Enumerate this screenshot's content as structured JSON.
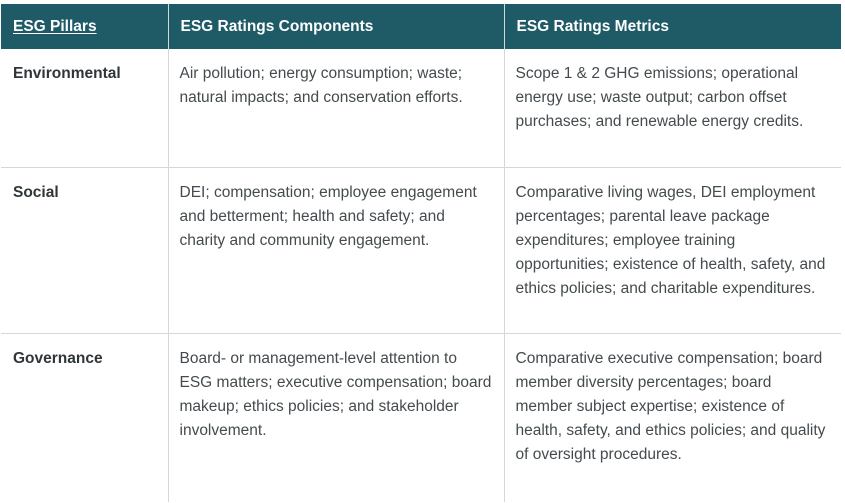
{
  "table": {
    "headers": [
      "ESG Pillars",
      "ESG Ratings Components",
      "ESG Ratings Metrics"
    ],
    "rows": [
      {
        "pillar": "Environmental",
        "components": "Air pollution; energy consumption; waste; natural impacts; and conservation efforts.",
        "metrics": "Scope 1 & 2 GHG emissions; operational energy use; waste output; carbon offset purchases; and renewable energy credits."
      },
      {
        "pillar": "Social",
        "components": "DEI; compensation; employee engagement and betterment; health and safety; and charity and community engagement.",
        "metrics": "Comparative living wages, DEI employment percentages; parental leave package expenditures; employee training opportunities; existence of health, safety, and ethics policies; and charitable expenditures."
      },
      {
        "pillar": "Governance",
        "components": "Board- or management-level attention to ESG matters; executive compensation; board makeup; ethics policies; and stakeholder involvement.",
        "metrics": "Comparative executive compensation; board member diversity percentages; board member subject expertise; existence of health, safety, and ethics policies; and quality of oversight procedures."
      }
    ]
  },
  "colors": {
    "header_bg": "#1f5b67",
    "header_text": "#ffffff",
    "body_text": "#444b4e",
    "grid": "#d3d8da"
  }
}
